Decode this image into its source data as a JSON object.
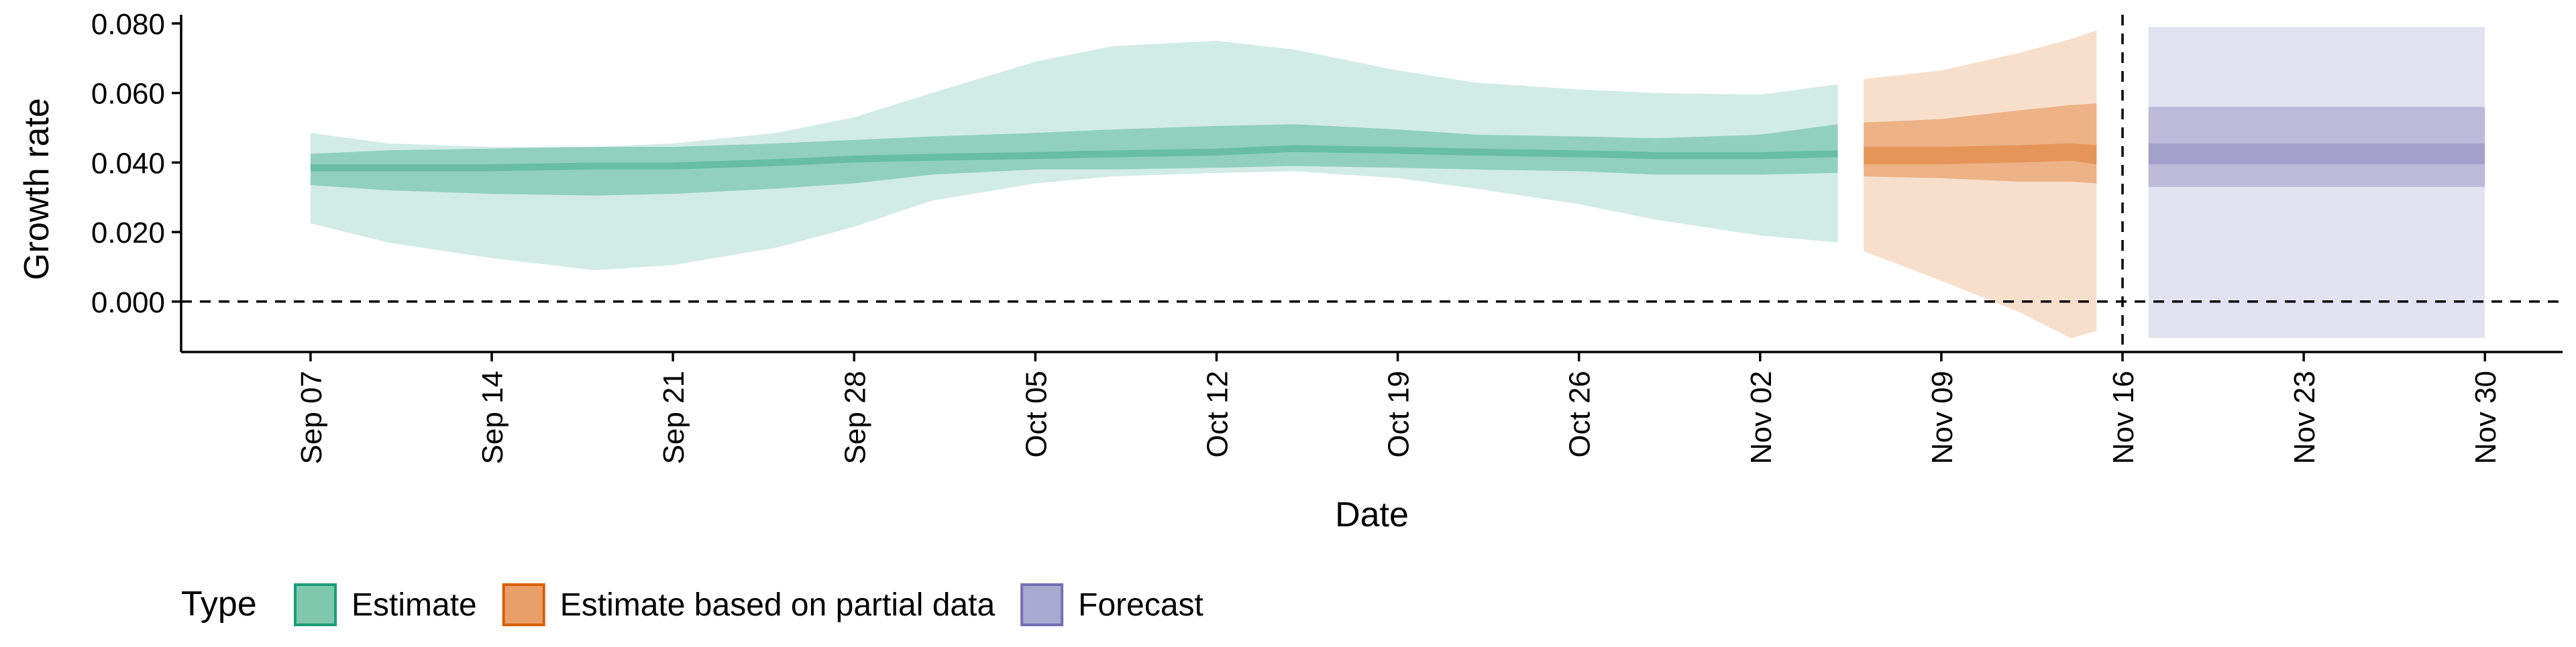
{
  "chart_data": {
    "type": "area",
    "xlabel": "Date",
    "ylabel": "Growth rate",
    "x_type": "date",
    "xlim": [
      "2020-09-02",
      "2020-12-03"
    ],
    "ylim": [
      -0.0145,
      0.0825
    ],
    "x_ticks": [
      {
        "date": "2020-09-07",
        "label": "Sep 07"
      },
      {
        "date": "2020-09-14",
        "label": "Sep 14"
      },
      {
        "date": "2020-09-21",
        "label": "Sep 21"
      },
      {
        "date": "2020-09-28",
        "label": "Sep 28"
      },
      {
        "date": "2020-10-05",
        "label": "Oct 05"
      },
      {
        "date": "2020-10-12",
        "label": "Oct 12"
      },
      {
        "date": "2020-10-19",
        "label": "Oct 19"
      },
      {
        "date": "2020-10-26",
        "label": "Oct 26"
      },
      {
        "date": "2020-11-02",
        "label": "Nov 02"
      },
      {
        "date": "2020-11-09",
        "label": "Nov 09"
      },
      {
        "date": "2020-11-16",
        "label": "Nov 16"
      },
      {
        "date": "2020-11-23",
        "label": "Nov 23"
      },
      {
        "date": "2020-11-30",
        "label": "Nov 30"
      }
    ],
    "y_ticks": [
      {
        "value": 0.0,
        "label": "0.000"
      },
      {
        "value": 0.02,
        "label": "0.020"
      },
      {
        "value": 0.04,
        "label": "0.040"
      },
      {
        "value": 0.06,
        "label": "0.060"
      },
      {
        "value": 0.08,
        "label": "0.080"
      }
    ],
    "reference_lines": {
      "horizontal_y": 0,
      "vertical_date": "2020-11-16",
      "style": "dashed"
    },
    "grid": false,
    "legend": {
      "title": "Type",
      "position": "bottom-left",
      "entries": [
        {
          "label": "Estimate",
          "fill": "#7fc8ae",
          "stroke": "#1b9e77"
        },
        {
          "label": "Estimate based on partial data",
          "fill": "#e9a068",
          "stroke": "#d95f02"
        },
        {
          "label": "Forecast",
          "fill": "#aaa9d1",
          "stroke": "#7570b3"
        }
      ]
    },
    "series": [
      {
        "color": "#1b9e77",
        "points": [
          {
            "date": "2020-09-07",
            "median": 0.0385,
            "lower_20": 0.0375,
            "upper_20": 0.0395,
            "lower_50": 0.0335,
            "upper_50": 0.0425,
            "lower_90": 0.0225,
            "upper_90": 0.0485
          },
          {
            "date": "2020-09-10",
            "median": 0.0385,
            "lower_20": 0.0375,
            "upper_20": 0.0395,
            "lower_50": 0.032,
            "upper_50": 0.0435,
            "lower_90": 0.017,
            "upper_90": 0.0455
          },
          {
            "date": "2020-09-14",
            "median": 0.0385,
            "lower_20": 0.0375,
            "upper_20": 0.0395,
            "lower_50": 0.031,
            "upper_50": 0.044,
            "lower_90": 0.0125,
            "upper_90": 0.0445
          },
          {
            "date": "2020-09-18",
            "median": 0.039,
            "lower_20": 0.038,
            "upper_20": 0.04,
            "lower_50": 0.0305,
            "upper_50": 0.0445,
            "lower_90": 0.009,
            "upper_90": 0.0445
          },
          {
            "date": "2020-09-21",
            "median": 0.039,
            "lower_20": 0.038,
            "upper_20": 0.04,
            "lower_50": 0.031,
            "upper_50": 0.0445,
            "lower_90": 0.0105,
            "upper_90": 0.0455
          },
          {
            "date": "2020-09-25",
            "median": 0.04,
            "lower_20": 0.039,
            "upper_20": 0.041,
            "lower_50": 0.0325,
            "upper_50": 0.0455,
            "lower_90": 0.0155,
            "upper_90": 0.0485
          },
          {
            "date": "2020-09-28",
            "median": 0.041,
            "lower_20": 0.04,
            "upper_20": 0.042,
            "lower_50": 0.034,
            "upper_50": 0.0465,
            "lower_90": 0.0215,
            "upper_90": 0.053
          },
          {
            "date": "2020-10-01",
            "median": 0.0415,
            "lower_20": 0.0405,
            "upper_20": 0.0425,
            "lower_50": 0.0365,
            "upper_50": 0.0475,
            "lower_90": 0.029,
            "upper_90": 0.06
          },
          {
            "date": "2020-10-05",
            "median": 0.042,
            "lower_20": 0.041,
            "upper_20": 0.043,
            "lower_50": 0.038,
            "upper_50": 0.0485,
            "lower_90": 0.034,
            "upper_90": 0.069
          },
          {
            "date": "2020-10-08",
            "median": 0.0425,
            "lower_20": 0.0415,
            "upper_20": 0.0435,
            "lower_50": 0.038,
            "upper_50": 0.0495,
            "lower_90": 0.036,
            "upper_90": 0.0735
          },
          {
            "date": "2020-10-12",
            "median": 0.043,
            "lower_20": 0.042,
            "upper_20": 0.044,
            "lower_50": 0.0385,
            "upper_50": 0.0505,
            "lower_90": 0.037,
            "upper_90": 0.075
          },
          {
            "date": "2020-10-15",
            "median": 0.044,
            "lower_20": 0.043,
            "upper_20": 0.045,
            "lower_50": 0.039,
            "upper_50": 0.051,
            "lower_90": 0.0375,
            "upper_90": 0.0725
          },
          {
            "date": "2020-10-19",
            "median": 0.0435,
            "lower_20": 0.0425,
            "upper_20": 0.0445,
            "lower_50": 0.0385,
            "upper_50": 0.0495,
            "lower_90": 0.0355,
            "upper_90": 0.0665
          },
          {
            "date": "2020-10-22",
            "median": 0.043,
            "lower_20": 0.042,
            "upper_20": 0.044,
            "lower_50": 0.038,
            "upper_50": 0.048,
            "lower_90": 0.0325,
            "upper_90": 0.063
          },
          {
            "date": "2020-10-26",
            "median": 0.0425,
            "lower_20": 0.0415,
            "upper_20": 0.0435,
            "lower_50": 0.0375,
            "upper_50": 0.0475,
            "lower_90": 0.028,
            "upper_90": 0.061
          },
          {
            "date": "2020-10-29",
            "median": 0.042,
            "lower_20": 0.041,
            "upper_20": 0.043,
            "lower_50": 0.0365,
            "upper_50": 0.047,
            "lower_90": 0.0235,
            "upper_90": 0.06
          },
          {
            "date": "2020-11-02",
            "median": 0.042,
            "lower_20": 0.041,
            "upper_20": 0.043,
            "lower_50": 0.0365,
            "upper_50": 0.048,
            "lower_90": 0.019,
            "upper_90": 0.0595
          },
          {
            "date": "2020-11-05",
            "median": 0.0425,
            "lower_20": 0.0415,
            "upper_20": 0.0435,
            "lower_50": 0.037,
            "upper_50": 0.051,
            "lower_90": 0.017,
            "upper_90": 0.0625
          }
        ]
      },
      {
        "color": "#d95f02",
        "points": [
          {
            "date": "2020-11-06",
            "median": 0.042,
            "lower_20": 0.0395,
            "upper_20": 0.0445,
            "lower_50": 0.036,
            "upper_50": 0.0515,
            "lower_90": 0.0145,
            "upper_90": 0.064
          },
          {
            "date": "2020-11-09",
            "median": 0.042,
            "lower_20": 0.0395,
            "upper_20": 0.0445,
            "lower_50": 0.0355,
            "upper_50": 0.0525,
            "lower_90": 0.006,
            "upper_90": 0.0665
          },
          {
            "date": "2020-11-12",
            "median": 0.0425,
            "lower_20": 0.04,
            "upper_20": 0.045,
            "lower_50": 0.0345,
            "upper_50": 0.055,
            "lower_90": -0.003,
            "upper_90": 0.0715
          },
          {
            "date": "2020-11-14",
            "median": 0.043,
            "lower_20": 0.0405,
            "upper_20": 0.0455,
            "lower_50": 0.0345,
            "upper_50": 0.0565,
            "lower_90": -0.0105,
            "upper_90": 0.0755
          },
          {
            "date": "2020-11-15",
            "median": 0.0425,
            "lower_20": 0.0395,
            "upper_20": 0.045,
            "lower_50": 0.034,
            "upper_50": 0.057,
            "lower_90": -0.0085,
            "upper_90": 0.078
          }
        ]
      },
      {
        "color": "#7570b3",
        "points": [
          {
            "date": "2020-11-17",
            "median": 0.0425,
            "lower_20": 0.0395,
            "upper_20": 0.0455,
            "lower_50": 0.033,
            "upper_50": 0.056,
            "lower_90": -0.0105,
            "upper_90": 0.079
          },
          {
            "date": "2020-11-30",
            "median": 0.0425,
            "lower_20": 0.0395,
            "upper_20": 0.0455,
            "lower_50": 0.033,
            "upper_50": 0.056,
            "lower_90": -0.0105,
            "upper_90": 0.079
          }
        ]
      }
    ]
  }
}
